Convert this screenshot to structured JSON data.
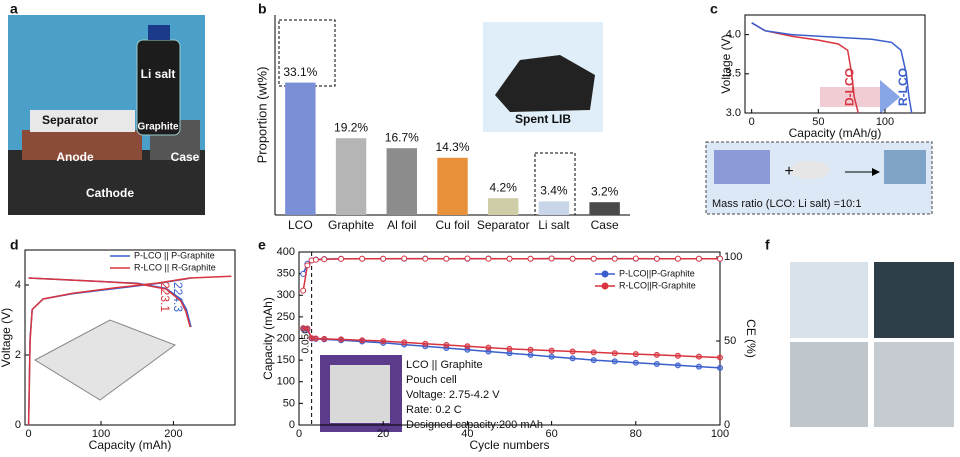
{
  "panel_labels": [
    "a",
    "b",
    "c",
    "d",
    "e",
    "f"
  ],
  "photo_a": {
    "labels": [
      "Li salt",
      "Separator",
      "Graphite",
      "Anode",
      "Case",
      "Cathode"
    ]
  },
  "schematic_c": {
    "text": "Mass ratio (LCO: Li salt) =10:1",
    "operator": "+"
  },
  "chart_data": [
    {
      "type": "bar",
      "ylabel": "Proportion (wt%)",
      "categories": [
        "LCO",
        "Graphite",
        "Al foil",
        "Cu foil",
        "Separator",
        "Li salt",
        "Case"
      ],
      "values": [
        33.1,
        19.2,
        16.7,
        14.3,
        4.2,
        3.4,
        3.2
      ],
      "value_labels": [
        "33.1%",
        "19.2%",
        "16.7%",
        "14.3%",
        "4.2%",
        "3.4%",
        "3.2%"
      ],
      "colors": [
        "#7b8fd6",
        "#b5b5b5",
        "#8c8c8c",
        "#e8913a",
        "#cfcda8",
        "#c9d6ea",
        "#4a4a4a"
      ],
      "ylim": [
        0,
        50
      ],
      "inset_label": "Spent LIB"
    },
    {
      "type": "line",
      "xlabel": "Capacity (mAh/g)",
      "ylabel": "Voltage (V)",
      "xlim": [
        -5,
        130
      ],
      "ylim": [
        3.0,
        4.25
      ],
      "xticks": [
        0,
        50,
        100
      ],
      "yticks": [
        {
          "value": 3.0,
          "label": "3.0"
        },
        3.5,
        {
          "value": 4.0,
          "label": "4.0"
        }
      ],
      "series": [
        {
          "name": "D-LCO",
          "color": "#d9343f",
          "x": [
            0,
            10,
            30,
            50,
            65,
            72,
            75,
            77,
            80
          ],
          "values": [
            4.15,
            4.05,
            3.98,
            3.93,
            3.88,
            3.8,
            3.5,
            3.2,
            3.0
          ]
        },
        {
          "name": "R-LCO",
          "color": "#3a5fcd",
          "x": [
            0,
            10,
            30,
            60,
            90,
            105,
            112,
            116,
            118,
            120
          ],
          "values": [
            4.15,
            4.05,
            4.0,
            3.97,
            3.94,
            3.9,
            3.8,
            3.5,
            3.2,
            3.0
          ]
        }
      ]
    },
    {
      "type": "line",
      "xlabel": "Capacity (mAh)",
      "ylabel": "Voltage (V)",
      "xlim": [
        -5,
        285
      ],
      "ylim": [
        0,
        5
      ],
      "xticks": [
        0,
        100,
        200
      ],
      "yticks": [
        0,
        2,
        4
      ],
      "legend": "upper right",
      "series": [
        {
          "name": "P-LCO || P-Graphite",
          "color": "#3a5fcd",
          "end_label": "224.3",
          "x": [
            0,
            2,
            5,
            20,
            60,
            120,
            180,
            210,
            224.3,
            null,
            0,
            50,
            100,
            150,
            190,
            210,
            218,
            224.3
          ],
          "values": [
            0,
            2.5,
            3.3,
            3.6,
            3.75,
            3.9,
            4.05,
            4.15,
            4.2,
            null,
            4.2,
            4.15,
            4.1,
            4.05,
            3.9,
            3.6,
            3.3,
            2.8
          ]
        },
        {
          "name": "R-LCO || R-Graphite",
          "color": "#d9343f",
          "end_label": "223.1",
          "x": [
            0,
            2,
            5,
            20,
            60,
            120,
            180,
            210,
            223.1,
            280,
            null,
            0,
            50,
            100,
            150,
            190,
            210,
            217,
            223.1
          ],
          "values": [
            0,
            2.4,
            3.3,
            3.6,
            3.76,
            3.92,
            4.06,
            4.16,
            4.2,
            4.25,
            null,
            4.2,
            4.15,
            4.1,
            4.04,
            3.88,
            3.55,
            3.25,
            2.8
          ]
        }
      ]
    },
    {
      "type": "line",
      "xlabel": "Cycle numbers",
      "ylabel": "Capacity (mAh)",
      "y2label": "CE (%)",
      "xlim": [
        0,
        100
      ],
      "ylim": [
        0,
        400
      ],
      "y2lim": [
        0,
        103
      ],
      "xticks": [
        0,
        20,
        40,
        60,
        80,
        100
      ],
      "yticks": [
        0,
        50,
        100,
        150,
        200,
        250,
        300,
        350,
        400
      ],
      "y2ticks": [
        0,
        50,
        100
      ],
      "legend": "upper right",
      "markers": true,
      "vline": {
        "x": 3,
        "label": "0.05C"
      },
      "inset_text": [
        "LCO || Graphite",
        "Pouch cell",
        "Voltage: 2.75-4.2 V",
        "Rate: 0.2 C",
        "Designed capacity:200 mAh"
      ],
      "x": [
        1,
        2,
        3,
        4,
        6,
        10,
        15,
        20,
        25,
        30,
        35,
        40,
        45,
        50,
        55,
        60,
        65,
        70,
        75,
        80,
        85,
        90,
        95,
        100
      ],
      "series": [
        {
          "name": "P-LCO||P-Graphite",
          "color": "#3a5fcd",
          "values": [
            222,
            221,
            200,
            199,
            198,
            196,
            193,
            190,
            186,
            182,
            178,
            174,
            170,
            166,
            162,
            158,
            154,
            150,
            147,
            144,
            141,
            138,
            135,
            132
          ]
        },
        {
          "name": "R-LCO||R-Graphite",
          "color": "#d9343f",
          "values": [
            224,
            223,
            201,
            200,
            199,
            198,
            196,
            194,
            191,
            188,
            185,
            182,
            179,
            176,
            174,
            172,
            170,
            168,
            166,
            164,
            162,
            160,
            158,
            156
          ]
        },
        {
          "color": "#3a5fcd",
          "axis": "y2",
          "values": [
            90,
            96,
            98,
            98.5,
            98.8,
            99,
            99,
            99,
            99,
            99.1,
            99,
            99,
            99.1,
            99,
            99,
            99.1,
            99,
            99,
            99.1,
            99,
            99,
            99,
            99,
            99
          ]
        },
        {
          "color": "#d9343f",
          "axis": "y2",
          "values": [
            80,
            95,
            98,
            98.4,
            98.7,
            98.9,
            99,
            99,
            99.1,
            99,
            99,
            99.1,
            99,
            99,
            99,
            99.1,
            99,
            99,
            99,
            99.1,
            99,
            99,
            99,
            99
          ]
        }
      ]
    }
  ]
}
